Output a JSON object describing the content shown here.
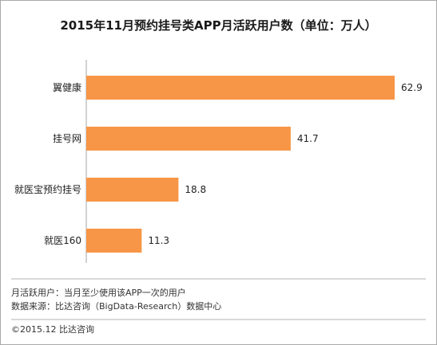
{
  "chart_data": {
    "type": "bar",
    "orientation": "horizontal",
    "title": "2015年11月预约挂号类APP月活跃用户数（单位：万人）",
    "categories": [
      "翼健康",
      "挂号网",
      "就医宝预约挂号",
      "就医160"
    ],
    "values": [
      62.9,
      41.7,
      18.8,
      11.3
    ],
    "value_labels": [
      "62.9",
      "41.7",
      "18.8",
      "11.3"
    ],
    "bar_color": "#F79646",
    "xlim": [
      0,
      65
    ]
  },
  "notes": [
    "月活跃用户：当月至少使用该APP一次的用户",
    "数据来源：比达咨询（BigData-Research）数据中心"
  ],
  "copyright": "©2015.12  比达咨询"
}
